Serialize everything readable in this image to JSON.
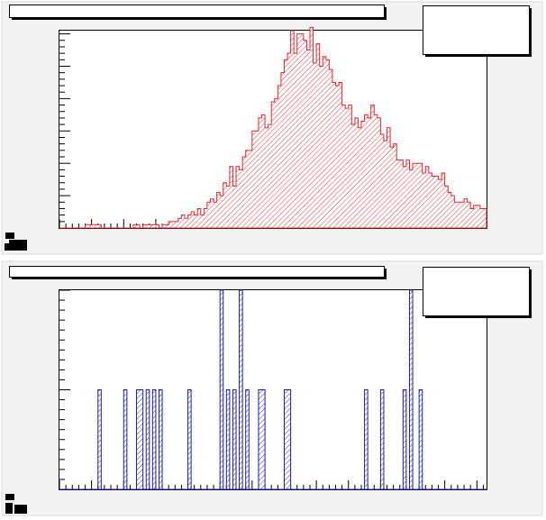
{
  "canvas": {
    "background": "#f2f2f2",
    "frame_color": "#000000"
  },
  "pads": [
    {
      "id": "top",
      "title_box_text": "",
      "stats_box_text": "",
      "tick_label_text": "",
      "chart_data": {
        "type": "bar",
        "style": "step-histogram",
        "line_color": "#e8262c",
        "fill_color": "#e8262c",
        "fill_pattern": "hatched",
        "xlim": [
          0,
          133
        ],
        "ylim": [
          0,
          61
        ],
        "grid": false,
        "legend": "none",
        "x_major_every": 10,
        "x_minor_every": 2,
        "y_major_every": 10,
        "y_minor_every": 2,
        "values": [
          0,
          0,
          0,
          0,
          0,
          0,
          0,
          0,
          1,
          1,
          1,
          1,
          1,
          0,
          0,
          0,
          0,
          0,
          0,
          0,
          0,
          0,
          0,
          1,
          1,
          0,
          1,
          1,
          1,
          1,
          1,
          0,
          1,
          1,
          2,
          2,
          2,
          3,
          4,
          3,
          4,
          5,
          4,
          6,
          4,
          6,
          8,
          9,
          8,
          11,
          10,
          14,
          13,
          19,
          13,
          19,
          18,
          22,
          24,
          24,
          30,
          30,
          34,
          35,
          31,
          32,
          39,
          40,
          44,
          48,
          52,
          54,
          61,
          54,
          60,
          60,
          58,
          55,
          62,
          51,
          57,
          50,
          53,
          52,
          49,
          45,
          44,
          45,
          38,
          37,
          38,
          32,
          34,
          31,
          33,
          35,
          34,
          38,
          35,
          34,
          29,
          27,
          31,
          25,
          26,
          21,
          21,
          19,
          21,
          18,
          20,
          20,
          20,
          17,
          19,
          17,
          16,
          16,
          15,
          17,
          13,
          11,
          10,
          8,
          8,
          8,
          9,
          8,
          6,
          7,
          7,
          6,
          6
        ]
      }
    },
    {
      "id": "bottom",
      "title_box_text": "",
      "stats_box_text": "",
      "tick_label_text": "",
      "chart_data": {
        "type": "bar",
        "style": "step-histogram",
        "line_color": "#1c1caa",
        "fill_color": "#1c1caa",
        "fill_pattern": "hatched",
        "xlim": [
          0,
          133
        ],
        "ylim": [
          0,
          2
        ],
        "grid": false,
        "legend": "none",
        "x_major_every": 10,
        "x_minor_every": 2,
        "y_major_every": 1,
        "y_minor_every": 0.1,
        "values": [
          0,
          0,
          0,
          0,
          0,
          0,
          0,
          0,
          0,
          0,
          0,
          0,
          1,
          0,
          0,
          0,
          0,
          0,
          0,
          0,
          1,
          0,
          0,
          0,
          1,
          1,
          0,
          1,
          0,
          1,
          0,
          1,
          0,
          0,
          0,
          0,
          0,
          0,
          0,
          0,
          1,
          0,
          0,
          0,
          0,
          0,
          0,
          0,
          0,
          0,
          2,
          0,
          1,
          0,
          1,
          0,
          2,
          0,
          1,
          0,
          0,
          0,
          1,
          1,
          0,
          0,
          0,
          0,
          0,
          0,
          1,
          1,
          0,
          0,
          0,
          0,
          0,
          0,
          0,
          0,
          0,
          0,
          0,
          0,
          0,
          0,
          0,
          0,
          0,
          0,
          0,
          0,
          0,
          0,
          0,
          1,
          0,
          0,
          0,
          0,
          1,
          0,
          0,
          0,
          0,
          0,
          0,
          1,
          0,
          2,
          0,
          0,
          1,
          0,
          0,
          0,
          0,
          0,
          0,
          0,
          0,
          0,
          0,
          0,
          0,
          0,
          0,
          0,
          0,
          0,
          0,
          0,
          0
        ]
      }
    }
  ]
}
